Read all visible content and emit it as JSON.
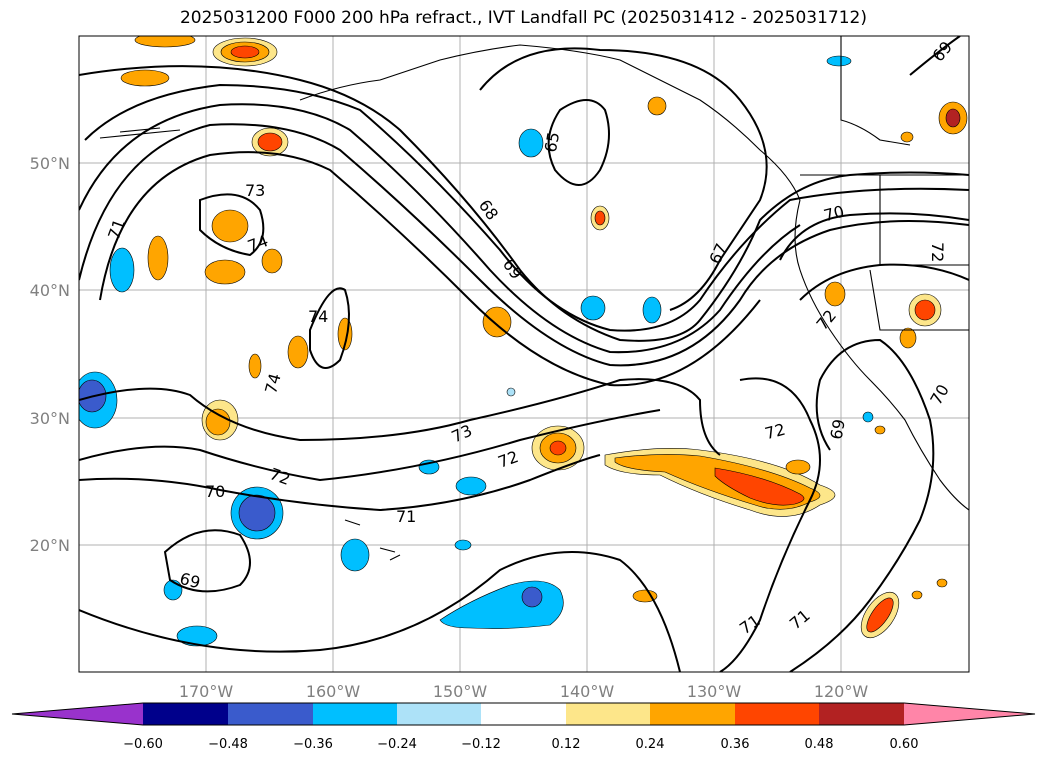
{
  "title": "2025031200 F000 200 hPa refract., IVT Landfall PC (2025031412 - 2025031712)",
  "map": {
    "lat_labels": [
      "50°N",
      "40°N",
      "30°N",
      "20°N"
    ],
    "lon_labels": [
      "170°W",
      "160°W",
      "150°W",
      "140°W",
      "130°W",
      "120°W"
    ],
    "contour_labels": [
      "73",
      "71",
      "74",
      "74",
      "74",
      "73",
      "72",
      "72",
      "70",
      "71",
      "69",
      "65",
      "68",
      "69",
      "67",
      "70",
      "72",
      "72",
      "72",
      "69",
      "70",
      "69",
      "71",
      "71"
    ]
  },
  "colorbar": {
    "ticks": [
      "−0.60",
      "−0.48",
      "−0.36",
      "−0.24",
      "−0.12",
      "0.12",
      "0.24",
      "0.36",
      "0.48",
      "0.60"
    ],
    "colors": [
      "#9932cc",
      "#00008b",
      "#3a5bcc",
      "#00bfff",
      "#ade2f8",
      "#ffffff",
      "#fde68a",
      "#ffa500",
      "#ff4500",
      "#b22222",
      "#ff85a8"
    ]
  }
}
